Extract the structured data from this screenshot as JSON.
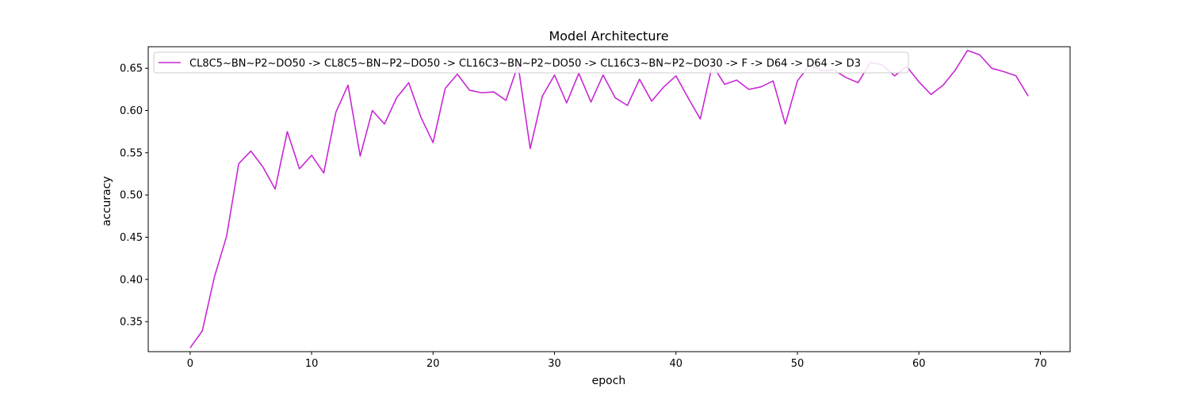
{
  "chart_data": {
    "type": "line",
    "title": "Model Architecture",
    "xlabel": "epoch",
    "ylabel": "accuracy",
    "xlim": [
      -3.45,
      72.45
    ],
    "ylim": [
      0.3145,
      0.6755
    ],
    "xticks": [
      0,
      10,
      20,
      30,
      40,
      50,
      60,
      70
    ],
    "yticks": [
      0.35,
      0.4,
      0.45,
      0.5,
      0.55,
      0.6,
      0.65
    ],
    "legend": "top-left",
    "series": [
      {
        "name": "CL8C5~BN~P2~DO50 -> CL8C5~BN~P2~DO50 -> CL16C3~BN~P2~DO50 -> CL16C3~BN~P2~DO30 -> F -> D64 -> D64 -> D3",
        "color": "#c728d4",
        "x": [
          0,
          1,
          2,
          3,
          4,
          5,
          6,
          7,
          8,
          9,
          10,
          11,
          12,
          13,
          14,
          15,
          16,
          17,
          18,
          19,
          20,
          21,
          22,
          23,
          24,
          25,
          26,
          27,
          28,
          29,
          30,
          31,
          32,
          33,
          34,
          35,
          36,
          37,
          38,
          39,
          40,
          41,
          42,
          43,
          44,
          45,
          46,
          47,
          48,
          49,
          50,
          51,
          52,
          53,
          54,
          55,
          56,
          57,
          58,
          59,
          60,
          61,
          62,
          63,
          64,
          65,
          66,
          67,
          68,
          69
        ],
        "values": [
          0.319,
          0.339,
          0.403,
          0.451,
          0.537,
          0.552,
          0.533,
          0.507,
          0.575,
          0.531,
          0.547,
          0.526,
          0.598,
          0.63,
          0.546,
          0.6,
          0.584,
          0.615,
          0.633,
          0.592,
          0.562,
          0.626,
          0.643,
          0.624,
          0.621,
          0.622,
          0.612,
          0.654,
          0.555,
          0.617,
          0.642,
          0.609,
          0.644,
          0.61,
          0.642,
          0.615,
          0.606,
          0.637,
          0.611,
          0.628,
          0.641,
          0.615,
          0.59,
          0.654,
          0.631,
          0.636,
          0.625,
          0.628,
          0.635,
          0.584,
          0.635,
          0.654,
          0.647,
          0.648,
          0.639,
          0.633,
          0.657,
          0.654,
          0.641,
          0.652,
          0.634,
          0.619,
          0.63,
          0.648,
          0.671,
          0.666,
          0.65,
          0.646,
          0.641,
          0.617
        ]
      }
    ]
  }
}
